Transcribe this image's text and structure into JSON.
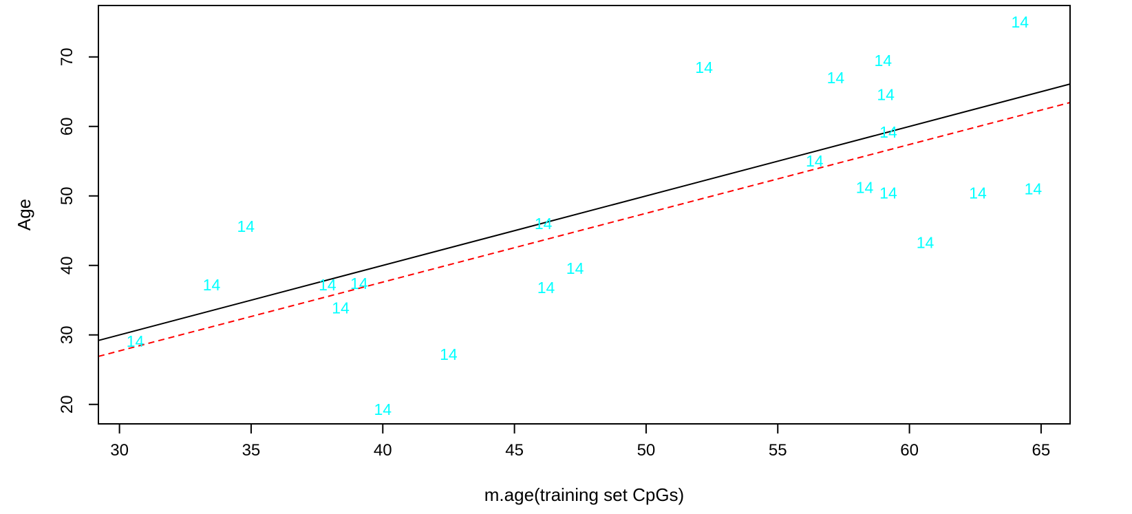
{
  "chart_data": {
    "type": "scatter",
    "title": "",
    "xlabel": "m.age(training set CpGs)",
    "ylabel": "Age",
    "xlim": [
      29.2,
      66.1
    ],
    "ylim": [
      17.2,
      77.4
    ],
    "xticks": [
      30,
      35,
      40,
      45,
      50,
      55,
      60,
      65
    ],
    "yticks": [
      20,
      30,
      40,
      50,
      60,
      70
    ],
    "grid": false,
    "point_marker": "14",
    "point_color": "#00ffff",
    "points": [
      {
        "x": 64.2,
        "y": 75.0
      },
      {
        "x": 52.2,
        "y": 68.5
      },
      {
        "x": 59.0,
        "y": 69.5
      },
      {
        "x": 57.2,
        "y": 67.0
      },
      {
        "x": 59.1,
        "y": 64.6
      },
      {
        "x": 59.2,
        "y": 59.2
      },
      {
        "x": 56.4,
        "y": 55.0
      },
      {
        "x": 58.3,
        "y": 51.2
      },
      {
        "x": 59.2,
        "y": 50.4
      },
      {
        "x": 62.6,
        "y": 50.4
      },
      {
        "x": 64.7,
        "y": 51.0
      },
      {
        "x": 60.6,
        "y": 43.3
      },
      {
        "x": 34.8,
        "y": 45.6
      },
      {
        "x": 46.1,
        "y": 46.0
      },
      {
        "x": 47.3,
        "y": 39.6
      },
      {
        "x": 46.2,
        "y": 36.8
      },
      {
        "x": 33.5,
        "y": 37.2
      },
      {
        "x": 37.9,
        "y": 37.2
      },
      {
        "x": 39.1,
        "y": 37.4
      },
      {
        "x": 38.4,
        "y": 33.9
      },
      {
        "x": 30.6,
        "y": 29.1
      },
      {
        "x": 42.5,
        "y": 27.2
      },
      {
        "x": 40.0,
        "y": 19.3
      }
    ],
    "lines": [
      {
        "style": "solid",
        "color": "#000000",
        "intercept": 0,
        "slope": 1
      },
      {
        "style": "dashed",
        "color": "#ff0000",
        "intercept": -2.0,
        "slope": 0.99
      }
    ]
  }
}
